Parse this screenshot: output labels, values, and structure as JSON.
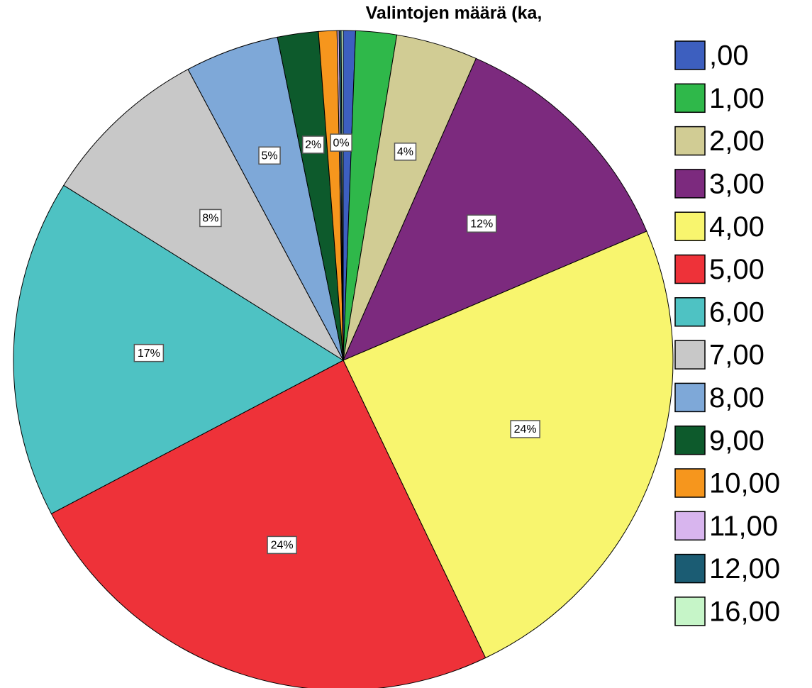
{
  "chart_data": {
    "type": "pie",
    "title": "Valintojen määrä (ka,",
    "categories": [
      ",00",
      "1,00",
      "2,00",
      "3,00",
      "4,00",
      "5,00",
      "6,00",
      "7,00",
      "8,00",
      "9,00",
      "10,00",
      "11,00",
      "12,00",
      "16,00"
    ],
    "values": [
      0.6,
      2.0,
      4.0,
      12.0,
      24.3,
      24.4,
      16.6,
      8.3,
      4.6,
      2.0,
      0.9,
      0.1,
      0.1,
      0.1
    ],
    "value_labels": [
      null,
      null,
      "4%",
      "12%",
      "24%",
      "24%",
      "17%",
      "8%",
      "5%",
      "2%",
      null,
      null,
      "0%",
      null
    ],
    "colors": [
      "#3d5fbf",
      "#2fb84a",
      "#d1cc94",
      "#7c2a7e",
      "#f8f56e",
      "#ee3239",
      "#4ec2c3",
      "#c8c8c8",
      "#7ea8d8",
      "#0d5a2c",
      "#f6961d",
      "#d8b5ee",
      "#1b5c73",
      "#c6f5c8"
    ],
    "legend": "right"
  }
}
